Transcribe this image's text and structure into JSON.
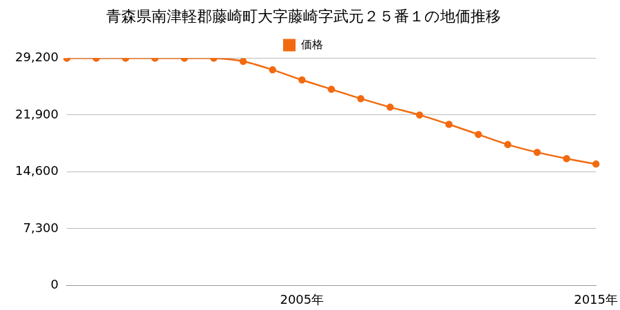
{
  "chart_data": {
    "type": "line",
    "title": "青森県南津軽郡藤崎町大字藤崎字武元２５番１の地価推移",
    "categories": [
      null,
      null,
      null,
      null,
      null,
      null,
      null,
      null,
      "2005年",
      null,
      null,
      null,
      null,
      null,
      null,
      null,
      null,
      null,
      "2015年"
    ],
    "series": [
      {
        "name": "価格",
        "color": "#f26a0f",
        "marker": "circle",
        "values": [
          29200,
          29200,
          29200,
          29200,
          29200,
          29200,
          28800,
          27700,
          26400,
          25200,
          24000,
          22900,
          21900,
          20700,
          19400,
          18100,
          17100,
          16300,
          15600
        ]
      }
    ],
    "ylim": [
      0,
      29200
    ],
    "yticks": [
      0,
      {
        "value": 7300,
        "label": "7,300"
      },
      {
        "value": 14600,
        "label": "14,600"
      },
      {
        "value": 21900,
        "label": "21,900"
      },
      {
        "value": 29200,
        "label": "29,200"
      }
    ],
    "grid": true,
    "legend": "top"
  }
}
